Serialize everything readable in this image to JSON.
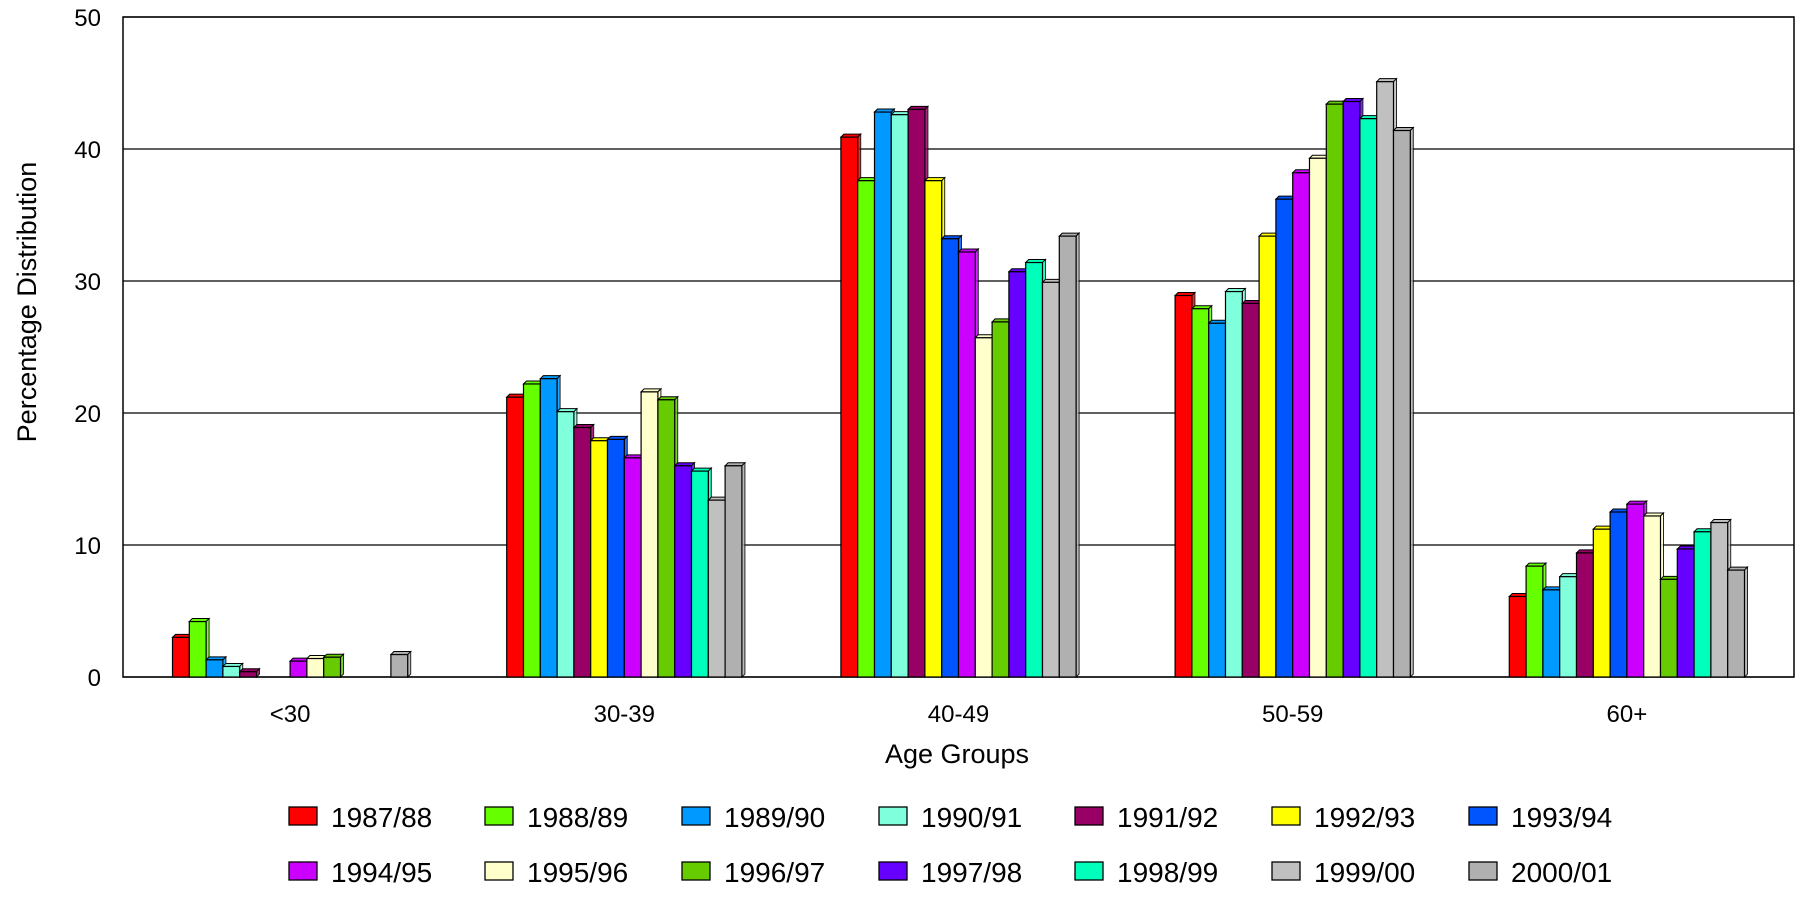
{
  "chart_data": {
    "type": "bar",
    "title": "",
    "xlabel": "Age Groups",
    "ylabel": "Percentage Distribution",
    "ylim": [
      0,
      50
    ],
    "yticks": [
      0,
      10,
      20,
      30,
      40,
      50
    ],
    "grid": true,
    "legend_position": "bottom",
    "categories": [
      "<30",
      "30-39",
      "40-49",
      "50-59",
      "60+"
    ],
    "series": [
      {
        "name": "1987/88",
        "color": "#ff0000",
        "values": [
          3.0,
          21.2,
          40.9,
          28.9,
          6.1
        ]
      },
      {
        "name": "1988/89",
        "color": "#66ff00",
        "values": [
          4.2,
          22.2,
          37.6,
          27.9,
          8.4
        ]
      },
      {
        "name": "1989/90",
        "color": "#0099ff",
        "values": [
          1.3,
          22.6,
          42.8,
          26.8,
          6.6
        ]
      },
      {
        "name": "1990/91",
        "color": "#80ffdd",
        "values": [
          0.8,
          20.1,
          42.6,
          29.2,
          7.6
        ]
      },
      {
        "name": "1991/92",
        "color": "#990066",
        "values": [
          0.4,
          18.9,
          43.0,
          28.3,
          9.4
        ]
      },
      {
        "name": "1992/93",
        "color": "#ffff00",
        "values": [
          0.0,
          17.9,
          37.6,
          33.4,
          11.2
        ]
      },
      {
        "name": "1993/94",
        "color": "#0055ff",
        "values": [
          0.0,
          18.0,
          33.2,
          36.2,
          12.5
        ]
      },
      {
        "name": "1994/95",
        "color": "#cc00ff",
        "values": [
          1.2,
          16.6,
          32.2,
          38.2,
          13.1
        ]
      },
      {
        "name": "1995/96",
        "color": "#ffffcc",
        "values": [
          1.4,
          21.6,
          25.7,
          39.3,
          12.2
        ]
      },
      {
        "name": "1996/97",
        "color": "#66cc00",
        "values": [
          1.5,
          21.0,
          26.9,
          43.4,
          7.4
        ]
      },
      {
        "name": "1997/98",
        "color": "#6600ff",
        "values": [
          0.0,
          16.0,
          30.7,
          43.6,
          9.7
        ]
      },
      {
        "name": "1998/99",
        "color": "#00ffbb",
        "values": [
          0.0,
          15.6,
          31.4,
          42.3,
          11.0
        ]
      },
      {
        "name": "1999/00",
        "color": "#c0c0c0",
        "values": [
          0.0,
          13.4,
          29.9,
          45.1,
          11.7
        ]
      },
      {
        "name": "2000/01",
        "color": "#b0b0b0",
        "values": [
          1.7,
          16.0,
          33.4,
          41.4,
          8.1
        ]
      }
    ]
  }
}
